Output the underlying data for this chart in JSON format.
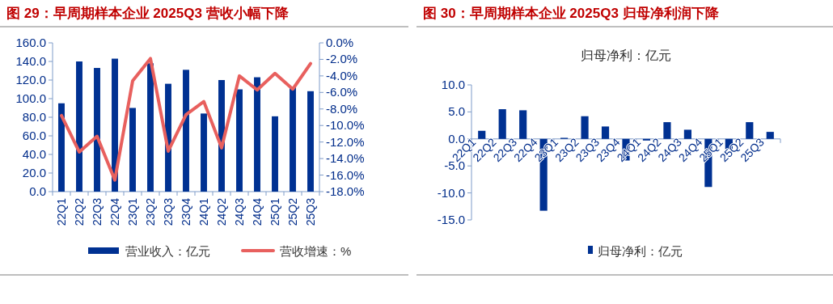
{
  "chart_data": [
    {
      "type": "bar",
      "title": "图 29：早周期样本企业 2025Q3 营收小幅下降",
      "categories": [
        "22Q1",
        "22Q2",
        "22Q3",
        "22Q4",
        "23Q1",
        "23Q2",
        "23Q3",
        "23Q4",
        "24Q1",
        "24Q2",
        "24Q3",
        "24Q4",
        "25Q1",
        "25Q2",
        "25Q3"
      ],
      "series": [
        {
          "name": "营业收入：亿元",
          "color": "#003192",
          "values": [
            95,
            140,
            133,
            143,
            90,
            138,
            116,
            131,
            84,
            120,
            110,
            123,
            81,
            113,
            108
          ]
        },
        {
          "name": "营收增速：%",
          "type": "line",
          "axis": "y2",
          "color": "#e8605e",
          "values": [
            -8.8,
            -13.2,
            -11.3,
            -16.6,
            -4.6,
            -1.9,
            -13.1,
            -8.7,
            -7.1,
            -12.7,
            -4.0,
            -5.7,
            -3.7,
            -5.6,
            -2.5
          ]
        }
      ],
      "ylim": [
        0,
        160
      ],
      "yticks": [
        {
          "value": 0,
          "label": "0.0"
        },
        {
          "value": 20,
          "label": "20.0"
        },
        {
          "value": 40,
          "label": "40.0"
        },
        {
          "value": 60,
          "label": "60.0"
        },
        {
          "value": 80,
          "label": "80.0"
        },
        {
          "value": 100,
          "label": "100.0"
        },
        {
          "value": 120,
          "label": "120.0"
        },
        {
          "value": 140,
          "label": "140.0"
        },
        {
          "value": 160,
          "label": "160.0"
        }
      ],
      "y2lim": [
        -18,
        0
      ],
      "y2ticks": [
        {
          "value": 0,
          "label": "0.0%"
        },
        {
          "value": -2,
          "label": "-2.0%"
        },
        {
          "value": -4,
          "label": "-4.0%"
        },
        {
          "value": -6,
          "label": "-6.0%"
        },
        {
          "value": -8,
          "label": "-8.0%"
        },
        {
          "value": -10,
          "label": "-10.0%"
        },
        {
          "value": -12,
          "label": "-12.0%"
        },
        {
          "value": -14,
          "label": "-14.0%"
        },
        {
          "value": -16,
          "label": "-16.0%"
        },
        {
          "value": -18,
          "label": "-18.0%"
        }
      ],
      "legend": "bottom"
    },
    {
      "type": "bar",
      "title": "图 30：早周期样本企业 2025Q3 归母净利润下降",
      "subtitle": "归母净利：亿元",
      "categories": [
        "22Q1",
        "22Q2",
        "22Q3",
        "22Q4",
        "23Q1",
        "23Q2",
        "23Q3",
        "23Q4",
        "24Q1",
        "24Q2",
        "24Q3",
        "24Q4",
        "25Q1",
        "25Q2",
        "25Q3"
      ],
      "series": [
        {
          "name": "归母净利：亿元",
          "color": "#003192",
          "values": [
            1.5,
            5.5,
            5.3,
            -13.3,
            0.2,
            4.2,
            2.3,
            -4.0,
            -0.3,
            3.1,
            1.7,
            -8.9,
            -1.9,
            3.1,
            1.3
          ]
        }
      ],
      "ylim": [
        -15,
        10
      ],
      "yticks": [
        {
          "value": -15,
          "label": "-15.0"
        },
        {
          "value": -10,
          "label": "-10.0"
        },
        {
          "value": -5,
          "label": "-5.0"
        },
        {
          "value": 0,
          "label": "0.0"
        },
        {
          "value": 5,
          "label": "5.0"
        },
        {
          "value": 10,
          "label": "10.0"
        }
      ],
      "legend": "bottom"
    }
  ]
}
